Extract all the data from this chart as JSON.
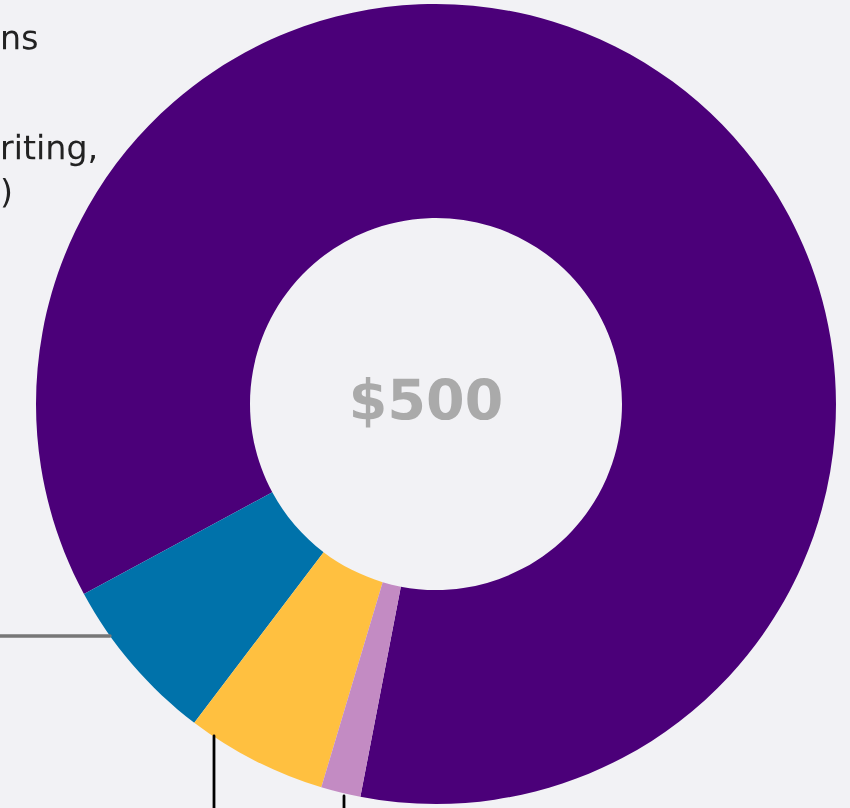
{
  "chart_data": {
    "type": "donut",
    "categories": [
      null,
      null,
      null,
      null
    ],
    "values": [
      85.9,
      6.8,
      5.7,
      1.6
    ],
    "colors": [
      "#4b0079",
      "#0072aa",
      "#ffc040",
      "#c38bc3"
    ],
    "annotations": [
      "$500",
      "ns",
      "riting,",
      ")"
    ]
  }
}
